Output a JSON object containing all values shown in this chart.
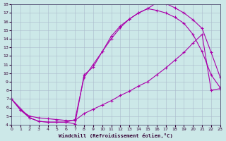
{
  "xlabel": "Windchill (Refroidissement éolien,°C)",
  "xlim": [
    0,
    23
  ],
  "ylim": [
    4,
    18
  ],
  "xticks": [
    0,
    1,
    2,
    3,
    4,
    5,
    6,
    7,
    8,
    9,
    10,
    11,
    12,
    13,
    14,
    15,
    16,
    17,
    18,
    19,
    20,
    21,
    22,
    23
  ],
  "yticks": [
    4,
    5,
    6,
    7,
    8,
    9,
    10,
    11,
    12,
    13,
    14,
    15,
    16,
    17,
    18
  ],
  "bg_color": "#cce8e8",
  "line_color": "#aa00aa",
  "grid_color": "#aabbcc",
  "curve_top_x": [
    0,
    1,
    2,
    3,
    4,
    5,
    6,
    7,
    8,
    9,
    10,
    11,
    12,
    13,
    14,
    15,
    16,
    17,
    18,
    19,
    20,
    21,
    22,
    23
  ],
  "curve_top_y": [
    7.0,
    5.7,
    4.8,
    4.4,
    4.3,
    4.3,
    4.3,
    4.1,
    9.8,
    10.7,
    12.5,
    14.3,
    15.5,
    16.3,
    17.0,
    17.5,
    18.2,
    18.1,
    17.6,
    17.0,
    16.2,
    15.2,
    12.4,
    9.5
  ],
  "curve_mid_x": [
    0,
    2,
    3,
    4,
    5,
    6,
    7,
    8,
    9,
    10,
    11,
    12,
    13,
    14,
    15,
    16,
    17,
    18,
    19,
    20,
    21,
    22,
    23
  ],
  "curve_mid_y": [
    7.0,
    4.8,
    4.4,
    4.3,
    4.3,
    4.3,
    4.6,
    9.5,
    11.0,
    12.5,
    14.0,
    15.3,
    16.3,
    17.0,
    17.5,
    17.3,
    17.0,
    16.5,
    15.8,
    14.5,
    12.5,
    9.8,
    8.3
  ],
  "curve_bot_x": [
    0,
    1,
    2,
    3,
    4,
    5,
    6,
    7,
    8,
    9,
    10,
    11,
    12,
    13,
    14,
    15,
    16,
    17,
    18,
    19,
    20,
    21,
    22,
    23
  ],
  "curve_bot_y": [
    7.0,
    5.7,
    5.0,
    4.8,
    4.7,
    4.6,
    4.5,
    4.5,
    5.3,
    5.8,
    6.3,
    6.8,
    7.4,
    7.9,
    8.5,
    9.0,
    9.8,
    10.6,
    11.5,
    12.4,
    13.5,
    14.5,
    8.0,
    8.2
  ]
}
